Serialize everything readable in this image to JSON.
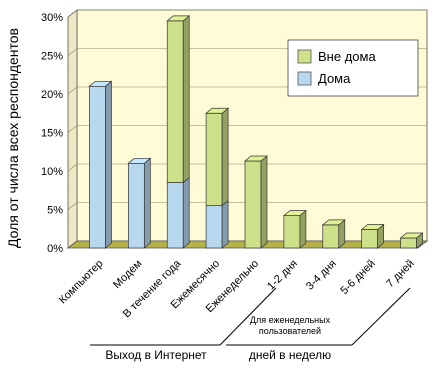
{
  "chart_data": {
    "type": "bar",
    "stacked": true,
    "three_d": true,
    "ylabel": "Доля от числа всех респондентов",
    "y_ticks": [
      "0%",
      "5%",
      "10%",
      "15%",
      "20%",
      "25%",
      "30%"
    ],
    "ylim": [
      0,
      30
    ],
    "grid": true,
    "legend_position": "top-right",
    "categories": [
      "Компьютер",
      "Модем",
      "В течение года",
      "Ежемесячно",
      "Еженедельно",
      "1-2 дня",
      "3-4 дня",
      "5-6 дней",
      "7 дней"
    ],
    "series": [
      {
        "name": "Дома",
        "color": "#b8d8f0",
        "values": [
          21,
          11,
          8.5,
          5.5,
          0,
          0,
          0,
          0,
          0
        ]
      },
      {
        "name": "Вне дома",
        "color": "#cfe08a",
        "values": [
          0,
          0,
          21,
          12,
          11.3,
          4.2,
          3,
          2.4,
          1.3
        ]
      }
    ],
    "legend": [
      {
        "label": "Вне дома",
        "color": "#cfe08a"
      },
      {
        "label": "Дома",
        "color": "#b8d8f0"
      }
    ],
    "group_labels": {
      "internet_access": "Выход в Интернет",
      "weekly_users_line1": "Для еженедельных",
      "weekly_users_line2": "пользователей",
      "days_per_week": "дней в неделю"
    },
    "colors": {
      "plot_background": "#fffbd6",
      "floor": "#b5b24a",
      "grid": "#8a8a6a"
    }
  }
}
